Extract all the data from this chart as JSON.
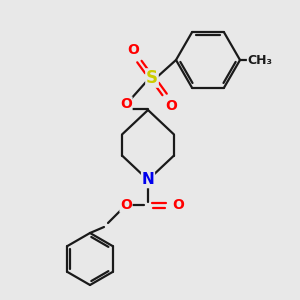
{
  "background_color": "#e8e8e8",
  "bond_color": "#1a1a1a",
  "atom_colors": {
    "O": "#ff0000",
    "N": "#0000ee",
    "S": "#cccc00",
    "C": "#1a1a1a"
  },
  "figsize": [
    3.0,
    3.0
  ],
  "dpi": 100,
  "lw": 1.6,
  "fs": 10
}
